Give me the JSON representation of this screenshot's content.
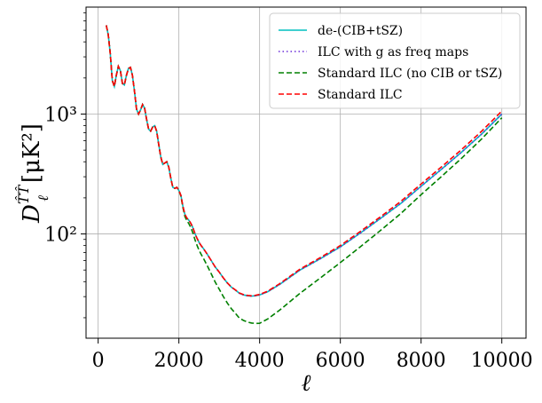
{
  "chart_data": {
    "type": "line",
    "title": "",
    "xlabel": "ℓ",
    "ylabel_base": "D",
    "ylabel_sub": "ℓ",
    "ylabel_sup": "T̂T̂",
    "ylabel_unit": "[μK²]",
    "xlim": [
      -300,
      10600
    ],
    "ylim": [
      13.5,
      7800
    ],
    "yscale": "log",
    "grid": true,
    "legend_position": "top-right",
    "x_ticks": [
      0,
      2000,
      4000,
      6000,
      8000,
      10000
    ],
    "x_tick_labels": [
      "0",
      "2000",
      "4000",
      "6000",
      "8000",
      "10000"
    ],
    "y_ticks": [
      100,
      1000
    ],
    "y_tick_labels": [
      "10²",
      "10³"
    ],
    "base_curve": {
      "x": [
        200,
        250,
        300,
        350,
        400,
        450,
        500,
        550,
        600,
        650,
        700,
        750,
        800,
        850,
        900,
        950,
        1000,
        1050,
        1100,
        1150,
        1200,
        1250,
        1300,
        1350,
        1400,
        1450,
        1500,
        1550,
        1600,
        1650,
        1700,
        1750,
        1800,
        1850,
        1900,
        1950,
        2000,
        2050,
        2100,
        2150,
        2200,
        2250,
        2300,
        2350,
        2400,
        2450,
        2500,
        2550,
        2600,
        2650,
        2700,
        2800,
        2900,
        3000,
        3100,
        3200,
        3300,
        3400,
        3500,
        3600,
        3700,
        3800,
        3900,
        4000,
        4200,
        4500,
        5000,
        5500,
        6000,
        6500,
        7000,
        7500,
        8000,
        8500,
        9000,
        9500,
        10000
      ],
      "y": [
        5500,
        4600,
        3200,
        1900,
        1700,
        2100,
        2500,
        2300,
        1800,
        1750,
        2100,
        2400,
        2450,
        2100,
        1550,
        1100,
        1000,
        1080,
        1200,
        1120,
        900,
        750,
        720,
        780,
        800,
        720,
        560,
        440,
        380,
        390,
        400,
        360,
        290,
        245,
        240,
        245,
        230,
        210,
        170,
        145,
        135,
        130,
        122,
        112,
        100,
        92,
        85,
        80,
        76,
        72,
        68,
        60,
        53,
        48,
        43,
        39,
        36,
        34,
        32,
        31,
        30.5,
        30.3,
        30.5,
        31,
        33,
        38,
        50,
        62,
        78,
        102,
        135,
        180,
        250,
        345,
        480,
        680,
        1000
      ]
    },
    "series": [
      {
        "name": "de-(CIB+tSZ)",
        "color": "#00bfbf",
        "dash": "solid",
        "scale": 1.0
      },
      {
        "name": "ILC with g as freq maps",
        "color": "#6a2bd9",
        "dash": "dotted",
        "scale": 1.0
      },
      {
        "name": "Standard ILC (no CIB or tSZ)",
        "color": "#008000",
        "dash": "dashed",
        "scale": "lowered"
      },
      {
        "name": "Standard ILC",
        "color": "#ff0000",
        "dash": "dashed",
        "scale": 1.06
      }
    ],
    "green_factor": {
      "x": [
        200,
        2000,
        2200,
        2500,
        3000,
        3500,
        4000,
        5000,
        6000,
        8000,
        10000
      ],
      "f": [
        1.0,
        1.0,
        0.95,
        0.86,
        0.72,
        0.62,
        0.58,
        0.64,
        0.74,
        0.85,
        0.93
      ]
    }
  }
}
